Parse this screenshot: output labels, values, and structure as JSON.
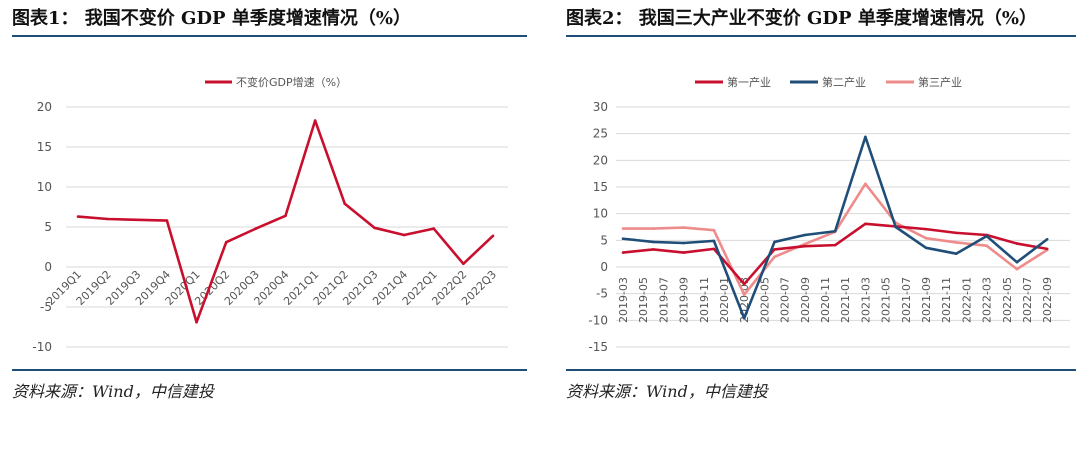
{
  "panels": {
    "left": {
      "title": "图表1： 我国不变价 GDP 单季度增速情况（%）",
      "source": "资料来源：Wind，中信建投"
    },
    "right": {
      "title": "图表2： 我国三大产业不变价 GDP 单季度增速情况（%）",
      "source": "资料来源：Wind，中信建投"
    }
  },
  "colors": {
    "rule": "#1f4e79",
    "red": "#c8102e",
    "navy": "#1f4e79",
    "pink": "#ee8c8c",
    "grid": "#d9d9d9"
  },
  "chart_data": [
    {
      "type": "line",
      "title": "",
      "xlabel": "",
      "ylabel": "",
      "categories": [
        "2019Q1",
        "2019Q2",
        "2019Q3",
        "2019Q4",
        "2020Q1",
        "2020Q2",
        "2020Q3",
        "2020Q4",
        "2021Q1",
        "2021Q2",
        "2021Q3",
        "2021Q4",
        "2022Q1",
        "2022Q2",
        "2022Q3"
      ],
      "yticks": [
        -10,
        -5,
        0,
        5,
        10,
        15,
        20
      ],
      "ylim": [
        -10,
        20
      ],
      "grid": true,
      "legend": "top",
      "series": [
        {
          "name": "不变价GDP增速（%）",
          "values": [
            6.3,
            6.0,
            5.9,
            5.8,
            -6.9,
            3.1,
            4.8,
            6.4,
            18.3,
            7.9,
            4.9,
            4.0,
            4.8,
            0.4,
            3.9
          ]
        }
      ]
    },
    {
      "type": "line",
      "title": "",
      "xlabel": "",
      "ylabel": "",
      "categories": [
        "2019-03",
        "2019-05",
        "2019-07",
        "2019-09",
        "2019-11",
        "2020-01",
        "2020-03",
        "2020-05",
        "2020-07",
        "2020-09",
        "2020-11",
        "2021-01",
        "2021-03",
        "2021-05",
        "2021-07",
        "2021-09",
        "2021-11",
        "2022-01",
        "2022-03",
        "2022-05",
        "2022-07",
        "2022-09"
      ],
      "x": [
        "2019-03",
        "2019-06",
        "2019-09",
        "2019-12",
        "2020-03",
        "2020-06",
        "2020-09",
        "2020-12",
        "2021-03",
        "2021-06",
        "2021-09",
        "2021-12",
        "2022-03",
        "2022-06",
        "2022-09"
      ],
      "yticks": [
        -15,
        -10,
        -5,
        0,
        5,
        10,
        15,
        20,
        25,
        30
      ],
      "ylim": [
        -15,
        30
      ],
      "grid": true,
      "legend": "top",
      "series": [
        {
          "name": "第一产业",
          "values": [
            2.7,
            3.3,
            2.7,
            3.4,
            -3.2,
            3.3,
            3.9,
            4.1,
            8.1,
            7.6,
            7.1,
            6.4,
            6.0,
            4.4,
            3.4
          ]
        },
        {
          "name": "第二产业",
          "values": [
            5.3,
            4.7,
            4.5,
            4.9,
            -9.6,
            4.7,
            6.0,
            6.7,
            24.4,
            7.5,
            3.6,
            2.5,
            5.8,
            0.9,
            5.2
          ]
        },
        {
          "name": "第三产业",
          "values": [
            7.2,
            7.2,
            7.4,
            6.9,
            -5.2,
            1.9,
            4.3,
            6.6,
            15.6,
            8.3,
            5.4,
            4.6,
            4.0,
            -0.4,
            3.2
          ]
        }
      ]
    }
  ]
}
